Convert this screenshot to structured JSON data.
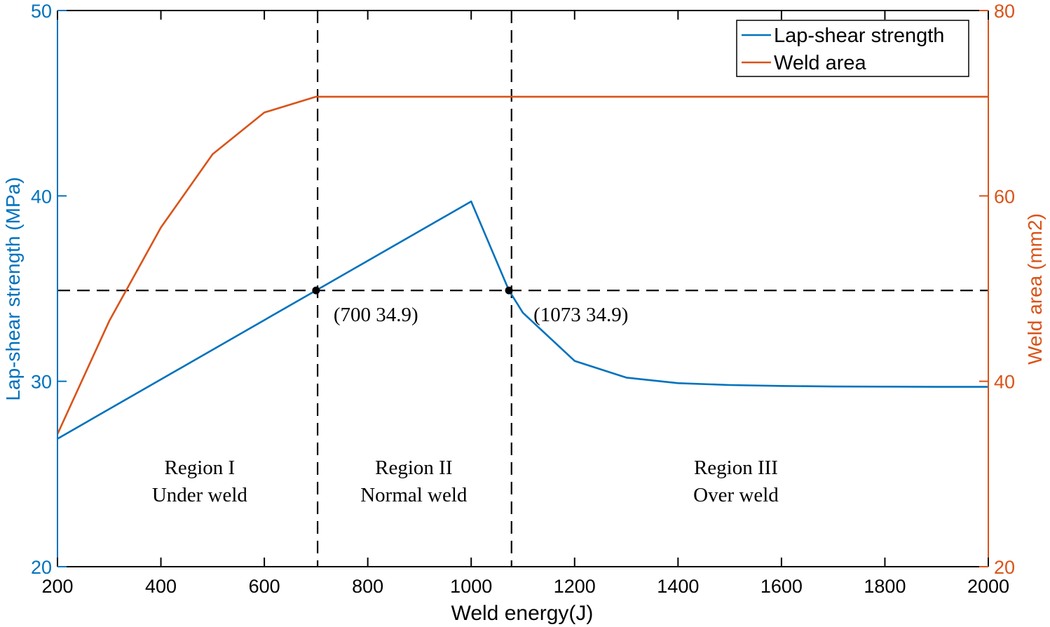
{
  "chart_data": {
    "type": "line",
    "xlabel": "Weld energy(J)",
    "xlim": [
      200,
      2000
    ],
    "xticks": [
      200,
      400,
      600,
      800,
      1000,
      1200,
      1400,
      1600,
      1800,
      2000
    ],
    "y_left": {
      "label": "Lap-shear strength (MPa)",
      "lim": [
        20,
        50
      ],
      "ticks": [
        20,
        30,
        40,
        50
      ],
      "color": "#0072BD"
    },
    "y_right": {
      "label": "Weld area (mm2)",
      "lim": [
        20,
        80
      ],
      "ticks": [
        20,
        40,
        60,
        80
      ],
      "color": "#D95319"
    },
    "series": [
      {
        "name": "Lap-shear strength",
        "axis": "left",
        "color": "#0072BD",
        "x": [
          200,
          700,
          1000,
          1073,
          1100,
          1200,
          1300,
          1400,
          1500,
          1600,
          1700,
          1800,
          1900,
          2000
        ],
        "y": [
          26.9,
          34.9,
          39.7,
          34.9,
          33.7,
          31.1,
          30.2,
          29.9,
          29.8,
          29.75,
          29.72,
          29.71,
          29.7,
          29.7
        ]
      },
      {
        "name": "Weld area",
        "axis": "right",
        "color": "#D95319",
        "x": [
          200,
          300,
          400,
          500,
          600,
          700,
          800,
          1000,
          1200,
          1400,
          1600,
          1800,
          2000
        ],
        "y": [
          34.3,
          46.5,
          56.6,
          64.5,
          69.0,
          70.7,
          70.7,
          70.7,
          70.7,
          70.7,
          70.7,
          70.7,
          70.7
        ]
      }
    ],
    "reference_lines": {
      "horizontal_y": 34.9,
      "vertical_x": [
        703,
        1078
      ],
      "style": "dashed"
    },
    "points": [
      {
        "x": 700,
        "y": 34.9,
        "label": "(700  34.9)"
      },
      {
        "x": 1073,
        "y": 34.9,
        "label": "(1073 34.9)"
      }
    ],
    "regions": [
      {
        "x_center": 475,
        "title": "Region I",
        "subtitle": "Under weld"
      },
      {
        "x_center": 889,
        "title": "Region II",
        "subtitle": "Normal weld"
      },
      {
        "x_center": 1512,
        "title": "Region III",
        "subtitle": "Over weld"
      }
    ],
    "legend": {
      "position": "top-right",
      "entries": [
        "Lap-shear strength",
        "Weld area"
      ]
    },
    "grid": false
  }
}
